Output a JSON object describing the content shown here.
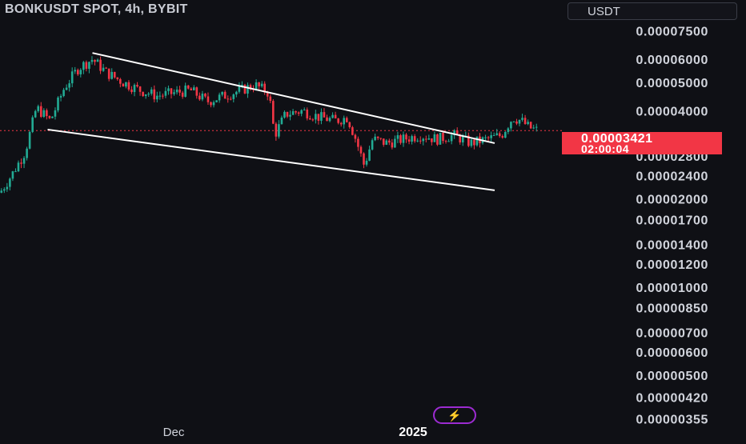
{
  "header": {
    "title": "BONKUSDT SPOT, 4h, BYBIT",
    "currency": "USDT"
  },
  "price_tag": {
    "price": "0.00003421",
    "countdown": "02:00:04",
    "color": "#f23645"
  },
  "colors": {
    "background": "#0f1015",
    "up_candle": "#22ab94",
    "down_candle": "#f23645",
    "trendline": "#ffffff",
    "axis_text": "#d1d4dc"
  },
  "chart_data": {
    "type": "candlestick",
    "title": "BONKUSDT SPOT, 4h, BYBIT",
    "scale": "log",
    "ylim": [
      3.1e-06,
      9.2e-05
    ],
    "y_ticks": [
      {
        "value": 7.5e-05,
        "label": "0.00007500"
      },
      {
        "value": 6e-05,
        "label": "0.00006000"
      },
      {
        "value": 5e-05,
        "label": "0.00005000"
      },
      {
        "value": 4e-05,
        "label": "0.00004000"
      },
      {
        "value": 2.8e-05,
        "label": "0.00002800"
      },
      {
        "value": 2.4e-05,
        "label": "0.00002400"
      },
      {
        "value": 2e-05,
        "label": "0.00002000"
      },
      {
        "value": 1.7e-05,
        "label": "0.00001700"
      },
      {
        "value": 1.4e-05,
        "label": "0.00001400"
      },
      {
        "value": 1.2e-05,
        "label": "0.00001200"
      },
      {
        "value": 1e-05,
        "label": "0.00001000"
      },
      {
        "value": 8.5e-06,
        "label": "0.00000850"
      },
      {
        "value": 7e-06,
        "label": "0.00000700"
      },
      {
        "value": 6e-06,
        "label": "0.00000600"
      },
      {
        "value": 5e-06,
        "label": "0.00000500"
      },
      {
        "value": 4.2e-06,
        "label": "0.00000420"
      },
      {
        "value": 3.55e-06,
        "label": "0.00000355"
      }
    ],
    "x_labels": [
      {
        "label": "Dec",
        "bold": false
      },
      {
        "label": "2025",
        "bold": true
      }
    ],
    "last_price": 3.421e-05,
    "price_path": [
      {
        "t": 0,
        "p": 2.1e-05
      },
      {
        "t": 0.02,
        "p": 2.4e-05
      },
      {
        "t": 0.045,
        "p": 2.9e-05
      },
      {
        "t": 0.065,
        "p": 4.1e-05
      },
      {
        "t": 0.09,
        "p": 3.7e-05
      },
      {
        "t": 0.115,
        "p": 4.8e-05
      },
      {
        "t": 0.14,
        "p": 5.6e-05
      },
      {
        "t": 0.165,
        "p": 6e-05
      },
      {
        "t": 0.19,
        "p": 5.4e-05
      },
      {
        "t": 0.22,
        "p": 5e-05
      },
      {
        "t": 0.25,
        "p": 4.7e-05
      },
      {
        "t": 0.28,
        "p": 4.5e-05
      },
      {
        "t": 0.31,
        "p": 4.6e-05
      },
      {
        "t": 0.34,
        "p": 4.7e-05
      },
      {
        "t": 0.37,
        "p": 4.3e-05
      },
      {
        "t": 0.4,
        "p": 4.5e-05
      },
      {
        "t": 0.43,
        "p": 4.7e-05
      },
      {
        "t": 0.455,
        "p": 4.9e-05
      },
      {
        "t": 0.48,
        "p": 4.6e-05
      },
      {
        "t": 0.49,
        "p": 3.3e-05
      },
      {
        "t": 0.51,
        "p": 3.9e-05
      },
      {
        "t": 0.54,
        "p": 4e-05
      },
      {
        "t": 0.57,
        "p": 3.8e-05
      },
      {
        "t": 0.6,
        "p": 3.7e-05
      },
      {
        "t": 0.62,
        "p": 3.8e-05
      },
      {
        "t": 0.635,
        "p": 3.2e-05
      },
      {
        "t": 0.65,
        "p": 2.6e-05
      },
      {
        "t": 0.665,
        "p": 3.2e-05
      },
      {
        "t": 0.69,
        "p": 3.1e-05
      },
      {
        "t": 0.72,
        "p": 3.2e-05
      },
      {
        "t": 0.75,
        "p": 3.3e-05
      },
      {
        "t": 0.78,
        "p": 3.2e-05
      },
      {
        "t": 0.81,
        "p": 3.3e-05
      },
      {
        "t": 0.84,
        "p": 3.1e-05
      },
      {
        "t": 0.87,
        "p": 3.2e-05
      },
      {
        "t": 0.895,
        "p": 3.3e-05
      },
      {
        "t": 0.915,
        "p": 3.8e-05
      },
      {
        "t": 0.93,
        "p": 3.7e-05
      },
      {
        "t": 0.945,
        "p": 3.5e-05
      },
      {
        "t": 0.96,
        "p": 3.421e-05
      }
    ],
    "trendlines": [
      {
        "from": {
          "t": 0.165,
          "p": 6.3e-05
        },
        "to": {
          "t": 1.0,
          "p": 3.1e-05
        }
      },
      {
        "from": {
          "t": 0.085,
          "p": 3.45e-05
        },
        "to": {
          "t": 1.0,
          "p": 2.14e-05
        }
      }
    ]
  }
}
